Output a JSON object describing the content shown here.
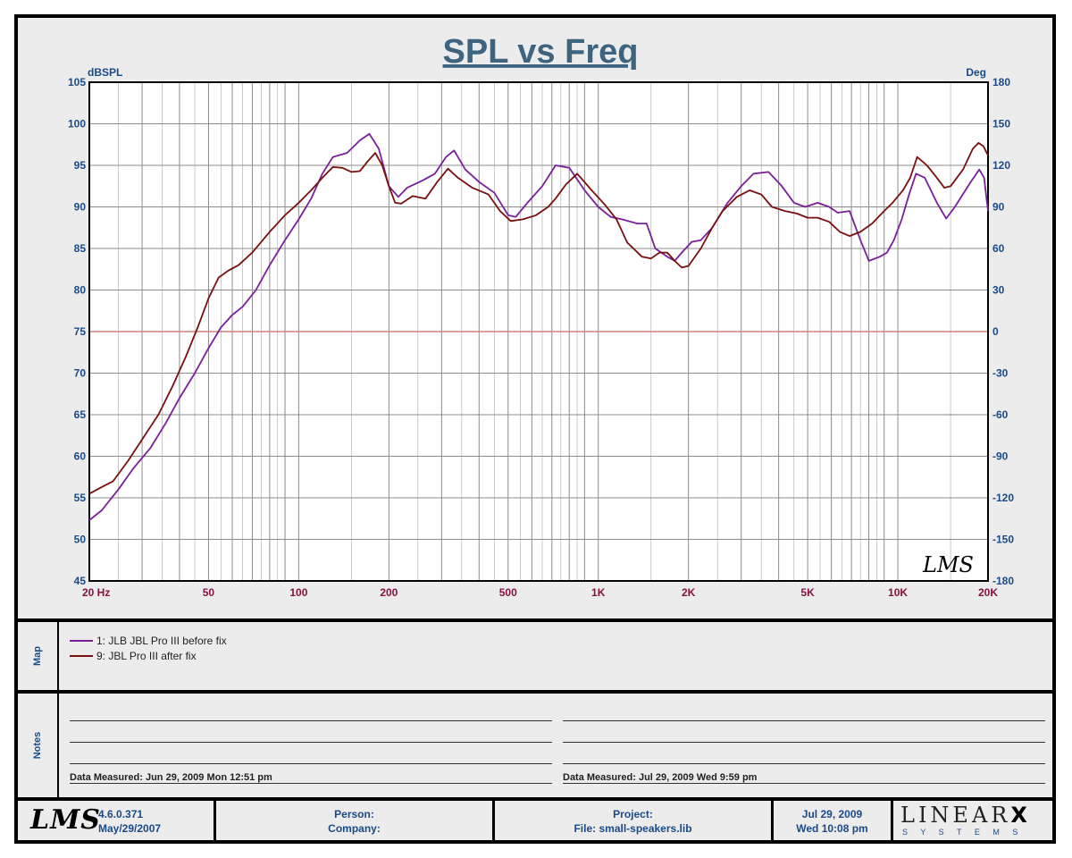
{
  "chart_data": {
    "type": "line",
    "title": "SPL vs Freq",
    "ylabel": "dBSPL",
    "y2label": "Deg",
    "xscale": "log",
    "xlim": [
      20,
      20000
    ],
    "ylim": [
      45,
      105
    ],
    "y2lim": [
      -180,
      180
    ],
    "x_tick_values": [
      20,
      50,
      100,
      200,
      500,
      1000,
      2000,
      5000,
      10000,
      20000
    ],
    "x_tick_labels": [
      "20  Hz",
      "50",
      "100",
      "200",
      "500",
      "1K",
      "2K",
      "5K",
      "10K",
      "20K"
    ],
    "y_ticks": [
      105,
      100,
      95,
      90,
      85,
      80,
      75,
      70,
      65,
      60,
      55,
      50,
      45
    ],
    "y2_ticks": [
      180,
      150,
      120,
      90,
      60,
      30,
      0,
      -30,
      -60,
      -90,
      -120,
      -150,
      -180
    ],
    "reference_line": 75,
    "watermark": "LMS",
    "colors": {
      "series1": "#7a1f9a",
      "series2": "#7a0f0f",
      "title": "#3e6480",
      "axis_text": "#1a4a8a",
      "x_text": "#8a1040",
      "reference": "#d08080",
      "grid": "#8c8c8c"
    },
    "series": [
      {
        "name": "1: JLB JBL Pro III before fix",
        "points": [
          [
            20,
            52.3
          ],
          [
            22,
            53.5
          ],
          [
            25,
            56
          ],
          [
            28,
            58.5
          ],
          [
            32,
            61
          ],
          [
            36,
            64
          ],
          [
            40,
            67
          ],
          [
            45,
            70
          ],
          [
            50,
            73
          ],
          [
            55,
            75.5
          ],
          [
            60,
            77
          ],
          [
            65,
            78
          ],
          [
            72,
            80
          ],
          [
            80,
            83
          ],
          [
            90,
            86
          ],
          [
            100,
            88.5
          ],
          [
            110,
            91
          ],
          [
            120,
            94
          ],
          [
            130,
            96
          ],
          [
            145,
            96.5
          ],
          [
            160,
            98
          ],
          [
            172,
            98.8
          ],
          [
            185,
            97
          ],
          [
            200,
            92.5
          ],
          [
            215,
            91.2
          ],
          [
            230,
            92.3
          ],
          [
            260,
            93.2
          ],
          [
            285,
            94
          ],
          [
            310,
            96
          ],
          [
            330,
            96.8
          ],
          [
            360,
            94.5
          ],
          [
            400,
            93
          ],
          [
            450,
            91.7
          ],
          [
            500,
            89
          ],
          [
            530,
            88.8
          ],
          [
            580,
            90.5
          ],
          [
            650,
            92.5
          ],
          [
            720,
            95
          ],
          [
            800,
            94.7
          ],
          [
            900,
            92
          ],
          [
            1000,
            90
          ],
          [
            1100,
            88.8
          ],
          [
            1200,
            88.5
          ],
          [
            1350,
            88
          ],
          [
            1450,
            88
          ],
          [
            1550,
            85
          ],
          [
            1700,
            84
          ],
          [
            1800,
            83.5
          ],
          [
            1900,
            84.5
          ],
          [
            2050,
            85.8
          ],
          [
            2200,
            86
          ],
          [
            2400,
            87.5
          ],
          [
            2700,
            90.5
          ],
          [
            3000,
            92.5
          ],
          [
            3300,
            94
          ],
          [
            3700,
            94.2
          ],
          [
            4100,
            92.5
          ],
          [
            4500,
            90.5
          ],
          [
            4900,
            90
          ],
          [
            5400,
            90.5
          ],
          [
            5900,
            90
          ],
          [
            6300,
            89.3
          ],
          [
            6900,
            89.5
          ],
          [
            7500,
            86
          ],
          [
            8000,
            83.5
          ],
          [
            8700,
            84
          ],
          [
            9200,
            84.5
          ],
          [
            9700,
            86
          ],
          [
            10300,
            88.5
          ],
          [
            10900,
            91.5
          ],
          [
            11500,
            94
          ],
          [
            12300,
            93.5
          ],
          [
            13500,
            90.5
          ],
          [
            14500,
            88.6
          ],
          [
            15500,
            90
          ],
          [
            17500,
            93
          ],
          [
            18700,
            94.5
          ],
          [
            19400,
            93.5
          ],
          [
            20000,
            89.5
          ]
        ]
      },
      {
        "name": "9: JBL Pro III after fix",
        "points": [
          [
            20,
            55.5
          ],
          [
            22,
            56.3
          ],
          [
            24,
            57
          ],
          [
            27,
            59.5
          ],
          [
            30,
            62
          ],
          [
            34,
            65
          ],
          [
            38,
            68.5
          ],
          [
            42,
            72
          ],
          [
            46,
            75.5
          ],
          [
            50,
            79
          ],
          [
            54,
            81.5
          ],
          [
            58,
            82.3
          ],
          [
            63,
            83
          ],
          [
            70,
            84.5
          ],
          [
            80,
            87
          ],
          [
            90,
            89
          ],
          [
            100,
            90.5
          ],
          [
            110,
            92
          ],
          [
            120,
            93.5
          ],
          [
            130,
            94.8
          ],
          [
            140,
            94.7
          ],
          [
            150,
            94.2
          ],
          [
            160,
            94.3
          ],
          [
            170,
            95.5
          ],
          [
            180,
            96.5
          ],
          [
            190,
            95
          ],
          [
            200,
            92.5
          ],
          [
            210,
            90.5
          ],
          [
            220,
            90.4
          ],
          [
            240,
            91.3
          ],
          [
            265,
            91
          ],
          [
            290,
            93
          ],
          [
            315,
            94.6
          ],
          [
            340,
            93.5
          ],
          [
            380,
            92.3
          ],
          [
            430,
            91.5
          ],
          [
            470,
            89.5
          ],
          [
            510,
            88.3
          ],
          [
            560,
            88.5
          ],
          [
            620,
            89
          ],
          [
            680,
            90
          ],
          [
            720,
            91
          ],
          [
            780,
            92.7
          ],
          [
            850,
            94
          ],
          [
            950,
            92
          ],
          [
            1050,
            90.3
          ],
          [
            1150,
            88.5
          ],
          [
            1250,
            85.7
          ],
          [
            1400,
            84
          ],
          [
            1500,
            83.8
          ],
          [
            1600,
            84.5
          ],
          [
            1700,
            84.5
          ],
          [
            1800,
            83.5
          ],
          [
            1900,
            82.7
          ],
          [
            2000,
            82.9
          ],
          [
            2200,
            85
          ],
          [
            2400,
            87.5
          ],
          [
            2600,
            89.5
          ],
          [
            2900,
            91.2
          ],
          [
            3200,
            92
          ],
          [
            3500,
            91.5
          ],
          [
            3800,
            90
          ],
          [
            4200,
            89.5
          ],
          [
            4600,
            89.2
          ],
          [
            5000,
            88.7
          ],
          [
            5400,
            88.7
          ],
          [
            5900,
            88.2
          ],
          [
            6400,
            87
          ],
          [
            6900,
            86.5
          ],
          [
            7500,
            87
          ],
          [
            8200,
            88
          ],
          [
            9000,
            89.5
          ],
          [
            9600,
            90.5
          ],
          [
            10400,
            92
          ],
          [
            11000,
            93.5
          ],
          [
            11600,
            96
          ],
          [
            12500,
            95
          ],
          [
            13300,
            93.8
          ],
          [
            14300,
            92.3
          ],
          [
            15000,
            92.5
          ],
          [
            16500,
            94.5
          ],
          [
            17800,
            97
          ],
          [
            18600,
            97.7
          ],
          [
            19300,
            97.3
          ],
          [
            20000,
            96.2
          ]
        ]
      }
    ]
  },
  "legend": {
    "label": "Map",
    "items": [
      "1: JLB JBL Pro III before fix",
      "9: JBL Pro III after fix"
    ]
  },
  "notes": {
    "label": "Notes",
    "left_measured": "Data Measured: Jun 29, 2009  Mon 12:51 pm",
    "right_measured": "Data Measured: Jul 29, 2009  Wed  9:59 pm"
  },
  "footer": {
    "logo": "LMS",
    "version": "4.6.0.371",
    "version_date": "May/29/2007",
    "person_label": "Person:",
    "company_label": "Company:",
    "project_label": "Project:",
    "file_label": "File: small-speakers.lib",
    "date": "Jul 29, 2009",
    "time": "Wed 10:08 pm",
    "brand": "LINEAR",
    "brand_x": "X",
    "brand_sub": "S Y S T E M S"
  }
}
